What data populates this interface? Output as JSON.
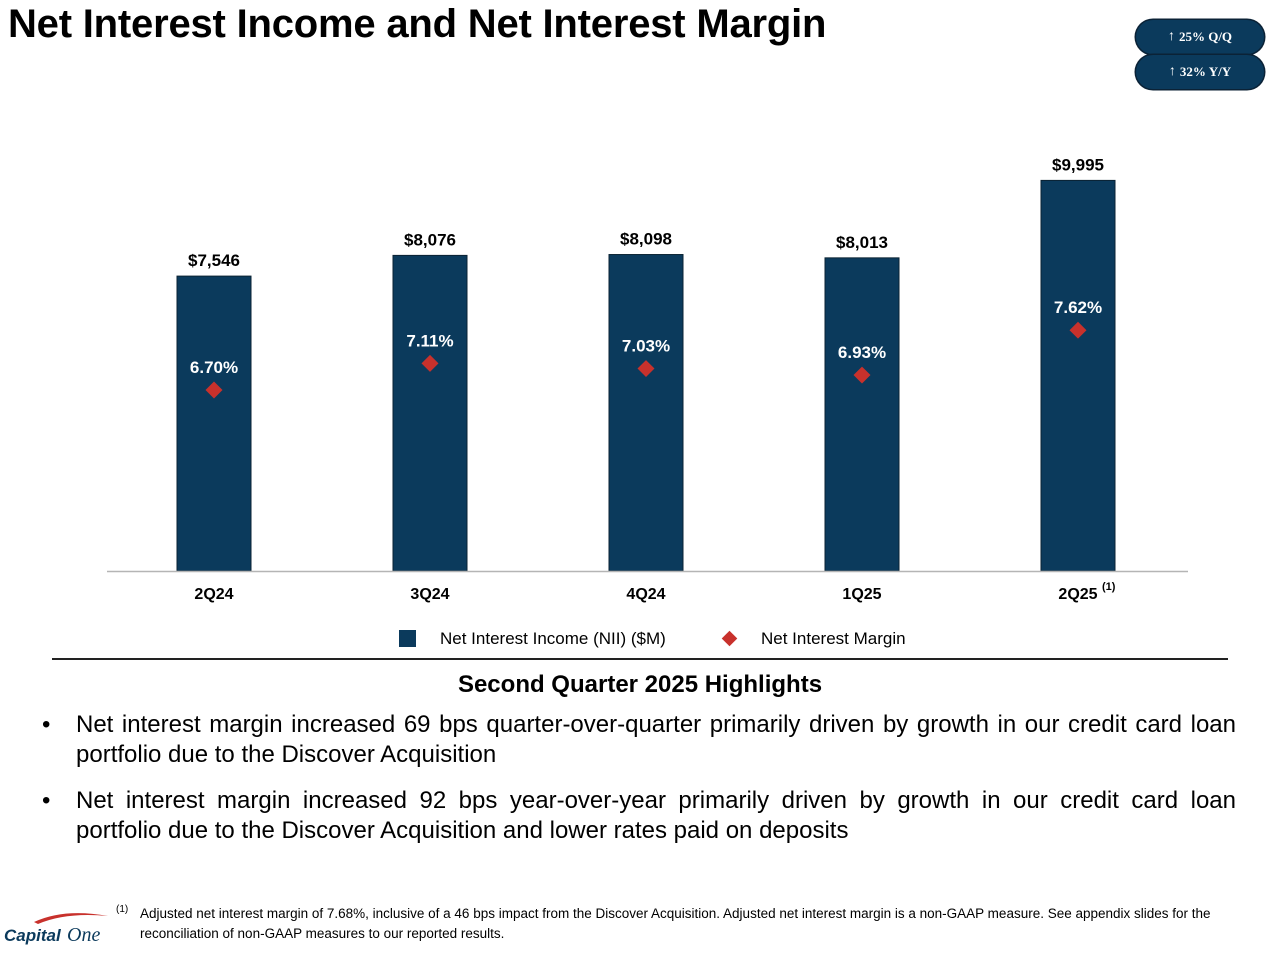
{
  "title": "Net Interest Income and Net Interest Margin",
  "badges": {
    "qq": {
      "arrow": "↑",
      "text": "25% Q/Q"
    },
    "yy": {
      "arrow": "↑",
      "text": "32% Y/Y"
    }
  },
  "chart_data": {
    "type": "bar",
    "categories": [
      "2Q24",
      "3Q24",
      "4Q24",
      "1Q25",
      "2Q25"
    ],
    "category_superscripts": [
      "",
      "",
      "",
      "",
      "(1)"
    ],
    "series": [
      {
        "name": "Net Interest Income (NII) ($M)",
        "kind": "bar",
        "values": [
          7546,
          8076,
          8098,
          8013,
          9995
        ],
        "labels": [
          "$7,546",
          "$8,076",
          "$8,098",
          "$8,013",
          "$9,995"
        ],
        "color": "#0b3a5c"
      },
      {
        "name": "Net Interest Margin",
        "kind": "marker",
        "values": [
          6.7,
          7.11,
          7.03,
          6.93,
          7.62
        ],
        "labels": [
          "6.70%",
          "7.11%",
          "7.03%",
          "6.93%",
          "7.62%"
        ],
        "color": "#c8312c"
      }
    ],
    "ylim": [
      0,
      10000
    ],
    "margin_ylim": [
      2.4,
      10.4
    ],
    "grid": false,
    "legend": "bottom-center"
  },
  "legend": {
    "nii": "Net Interest Income (NII) ($M)",
    "nim": "Net Interest Margin"
  },
  "highlights": {
    "title": "Second Quarter 2025 Highlights",
    "bullets": [
      "Net interest margin increased 69 bps quarter-over-quarter primarily driven by growth in our credit card loan portfolio due to the Discover Acquisition",
      "Net interest margin increased 92 bps year-over-year primarily driven by growth in our credit card loan portfolio due to the Discover Acquisition and lower rates paid on deposits"
    ],
    "bullet_symbol": "•"
  },
  "footnote": {
    "mark": "(1)",
    "text": "Adjusted net interest margin of 7.68%, inclusive of a 46 bps impact from the Discover Acquisition. Adjusted net interest margin is a non-GAAP measure. See appendix slides for the reconciliation of non-GAAP measures to our reported results."
  },
  "logo": {
    "text_capital": "Capital",
    "text_one": "One"
  },
  "colors": {
    "bar": "#0b3a5c",
    "marker": "#c8312c",
    "badge": "#0b3a5c"
  }
}
